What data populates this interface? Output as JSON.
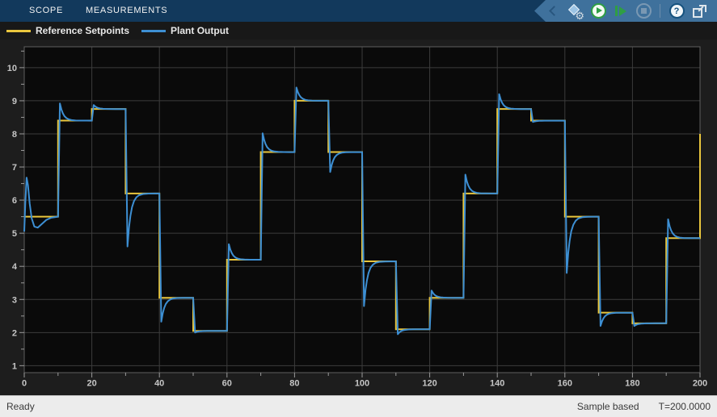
{
  "tabs": [
    {
      "label": "SCOPE"
    },
    {
      "label": "MEASUREMENTS"
    }
  ],
  "toolbar": {
    "settings_gear_glyph": "⚙",
    "help_glyph": "?"
  },
  "legend": {
    "items": [
      {
        "label": "Reference Setpoints",
        "color": "#e9c63d"
      },
      {
        "label": "Plant Output",
        "color": "#3d8fd3"
      }
    ]
  },
  "status": {
    "ready": "Ready",
    "mode": "Sample based",
    "time": "T=200.0000"
  },
  "chart_data": {
    "type": "line",
    "title": "",
    "xlabel": "",
    "ylabel": "",
    "x_range": [
      0,
      200
    ],
    "y_range": [
      0.79,
      10.63
    ],
    "x_label_ticks": [
      0,
      20,
      40,
      60,
      80,
      100,
      120,
      140,
      160,
      180,
      200
    ],
    "y_label_ticks": [
      1,
      2,
      3,
      4,
      5,
      6,
      7,
      8,
      9,
      10
    ],
    "x_minor_ticks": [
      10,
      30,
      50,
      70,
      90,
      110,
      130,
      150,
      170,
      190
    ],
    "y_minor_ticks": [
      1.5,
      2.5,
      3.5,
      4.5,
      5.5,
      6.5,
      7.5,
      8.5,
      9.5,
      10.5
    ],
    "grid": true,
    "legend_position": "top-left-bar",
    "plot_background": "#0a0a0a",
    "grid_color": "#3c3c3c",
    "axis_border_color": "#5f5f5f",
    "tick_label_color": "#c6c6c6",
    "series": [
      {
        "name": "Reference Setpoints",
        "color": "#e9c63d",
        "type": "staircase",
        "step_times": [
          0,
          10,
          20,
          30,
          40,
          50,
          60,
          70,
          80,
          90,
          100,
          110,
          120,
          130,
          140,
          150,
          160,
          170,
          180,
          190
        ],
        "levels": [
          5.5,
          8.4,
          8.75,
          6.2,
          3.05,
          2.05,
          4.2,
          7.45,
          9.0,
          7.45,
          4.15,
          2.1,
          3.05,
          6.2,
          8.75,
          8.4,
          5.5,
          2.6,
          2.28,
          4.85
        ],
        "end_time": 200,
        "end_jump_value": 8.0
      },
      {
        "name": "Plant Output",
        "color": "#3d8fd3",
        "type": "staircase_tracking_with_transients",
        "initial_transient_points": [
          [
            0,
            5.05
          ],
          [
            0.3,
            5.9
          ],
          [
            0.7,
            6.68
          ],
          [
            1.1,
            6.45
          ],
          [
            1.6,
            5.9
          ],
          [
            2.2,
            5.45
          ],
          [
            3.0,
            5.2
          ],
          [
            4.0,
            5.17
          ],
          [
            5.2,
            5.28
          ],
          [
            6.5,
            5.4
          ],
          [
            8.0,
            5.47
          ],
          [
            10,
            5.5
          ]
        ],
        "transient_peaks": [
          null,
          8.92,
          8.87,
          4.6,
          2.33,
          2.0,
          4.67,
          8.02,
          9.4,
          6.85,
          2.8,
          1.95,
          3.27,
          6.77,
          9.2,
          8.36,
          3.8,
          2.2,
          2.2,
          5.42
        ],
        "end_time": 200
      }
    ]
  }
}
